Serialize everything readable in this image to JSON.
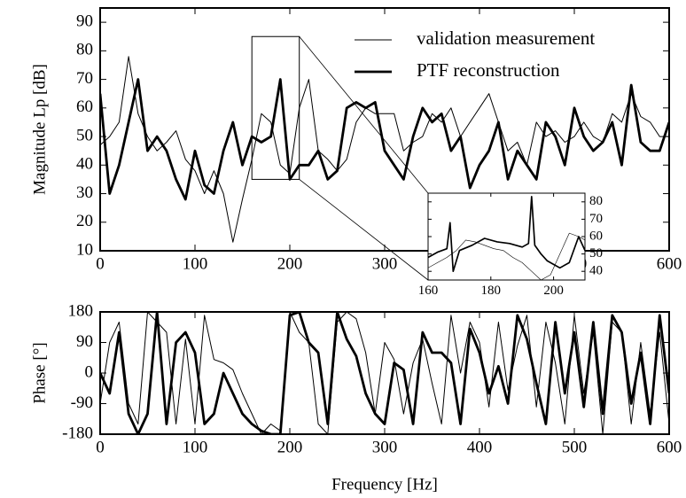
{
  "chart_data": [
    {
      "type": "line",
      "ylabel": "Magnitude Lp [dB]",
      "legend": "upper right",
      "xlim": [
        0,
        600
      ],
      "ylim": [
        10,
        95
      ],
      "xticks": [
        0,
        100,
        200,
        300,
        400,
        500,
        600
      ],
      "yticks": [
        10,
        20,
        30,
        40,
        50,
        60,
        70,
        80,
        90
      ],
      "x": [
        0,
        10,
        20,
        30,
        40,
        50,
        60,
        70,
        80,
        90,
        100,
        110,
        120,
        130,
        140,
        150,
        160,
        170,
        180,
        190,
        200,
        210,
        220,
        230,
        240,
        250,
        260,
        270,
        280,
        290,
        300,
        310,
        320,
        330,
        340,
        350,
        360,
        370,
        380,
        390,
        400,
        410,
        420,
        430,
        440,
        450,
        460,
        470,
        480,
        490,
        500,
        510,
        520,
        530,
        540,
        550,
        560,
        570,
        580,
        590,
        600
      ],
      "series": [
        {
          "name": "validation measurement",
          "color": "#000000",
          "values": [
            47,
            50,
            55,
            78,
            58,
            50,
            45,
            48,
            52,
            42,
            38,
            30,
            38,
            30,
            13,
            28,
            42,
            58,
            55,
            40,
            37,
            60,
            70,
            45,
            42,
            38,
            42,
            55,
            60,
            58,
            58,
            58,
            45,
            48,
            50,
            58,
            55,
            60,
            50,
            55,
            60,
            65,
            55,
            45,
            48,
            40,
            55,
            50,
            52,
            48,
            50,
            55,
            50,
            48,
            58,
            55,
            65,
            57,
            55,
            50,
            50
          ]
        },
        {
          "name": "PTF reconstruction",
          "color": "#000000",
          "values": [
            65,
            30,
            40,
            55,
            70,
            45,
            50,
            45,
            35,
            28,
            45,
            33,
            30,
            45,
            55,
            40,
            50,
            48,
            50,
            70,
            35,
            40,
            40,
            45,
            35,
            38,
            60,
            62,
            60,
            62,
            45,
            40,
            35,
            50,
            60,
            55,
            58,
            45,
            50,
            32,
            40,
            45,
            55,
            35,
            45,
            40,
            35,
            55,
            50,
            40,
            60,
            50,
            45,
            48,
            55,
            40,
            68,
            48,
            45,
            45,
            55
          ]
        }
      ]
    },
    {
      "type": "line",
      "yaxis_side": "right",
      "xlim": [
        160,
        210
      ],
      "ylim": [
        35,
        85
      ],
      "xticks": [
        160,
        180,
        200
      ],
      "yticks": [
        40,
        50,
        60,
        70,
        80
      ],
      "series": [
        {
          "color": "#000000",
          "x": [
            160,
            163,
            166,
            169,
            172,
            175,
            178,
            181,
            184,
            187,
            190,
            193,
            196,
            199,
            202,
            205,
            208,
            210
          ],
          "values": [
            42,
            45,
            48,
            52,
            58,
            57,
            55,
            53,
            52,
            48,
            45,
            40,
            35,
            38,
            50,
            62,
            60,
            58
          ]
        },
        {
          "color": "#000000",
          "x": [
            160,
            163,
            166,
            167,
            168,
            170,
            174,
            178,
            182,
            186,
            190,
            192,
            193,
            194,
            196,
            198,
            200,
            202,
            205,
            208,
            210
          ],
          "values": [
            48,
            51,
            53,
            68,
            40,
            52,
            55,
            59,
            57,
            56,
            54,
            56,
            83,
            55,
            50,
            46,
            44,
            42,
            45,
            60,
            52
          ]
        }
      ]
    },
    {
      "type": "line",
      "ylabel": "Phase [°]",
      "xlabel": "Frequency [Hz]",
      "xlim": [
        0,
        600
      ],
      "ylim": [
        -180,
        180
      ],
      "xticks": [
        0,
        100,
        200,
        300,
        400,
        500,
        600
      ],
      "yticks": [
        -180,
        -90,
        0,
        90,
        180
      ],
      "x": [
        0,
        10,
        20,
        30,
        40,
        50,
        60,
        70,
        80,
        90,
        100,
        110,
        120,
        130,
        140,
        150,
        160,
        170,
        180,
        190,
        200,
        210,
        220,
        230,
        240,
        250,
        260,
        270,
        280,
        290,
        300,
        310,
        320,
        330,
        340,
        350,
        360,
        370,
        380,
        390,
        400,
        410,
        420,
        430,
        440,
        450,
        460,
        470,
        480,
        490,
        500,
        510,
        520,
        530,
        540,
        550,
        560,
        570,
        580,
        590,
        600
      ],
      "series": [
        {
          "color": "#000000",
          "values": [
            -90,
            90,
            150,
            -90,
            -150,
            180,
            150,
            120,
            -150,
            100,
            -150,
            170,
            40,
            30,
            10,
            -60,
            -120,
            -180,
            -150,
            -170,
            180,
            120,
            90,
            -150,
            -180,
            150,
            180,
            160,
            60,
            -120,
            90,
            40,
            -120,
            30,
            100,
            -30,
            -150,
            170,
            0,
            150,
            90,
            -100,
            150,
            -50,
            80,
            170,
            -100,
            150,
            30,
            -150,
            170,
            -60,
            120,
            -180,
            150,
            120,
            -150,
            90,
            -120,
            120,
            -150
          ]
        },
        {
          "color": "#000000",
          "values": [
            0,
            -60,
            120,
            -120,
            -180,
            -120,
            180,
            -150,
            90,
            120,
            60,
            -150,
            -120,
            0,
            -60,
            -120,
            -150,
            -170,
            -180,
            -180,
            170,
            180,
            90,
            60,
            -150,
            180,
            100,
            50,
            -60,
            -120,
            -150,
            30,
            10,
            -150,
            120,
            60,
            60,
            30,
            -150,
            130,
            60,
            -60,
            20,
            -90,
            170,
            100,
            -30,
            -150,
            150,
            -60,
            120,
            -100,
            150,
            -120,
            170,
            120,
            -90,
            60,
            -150,
            170,
            -60
          ]
        }
      ]
    }
  ]
}
